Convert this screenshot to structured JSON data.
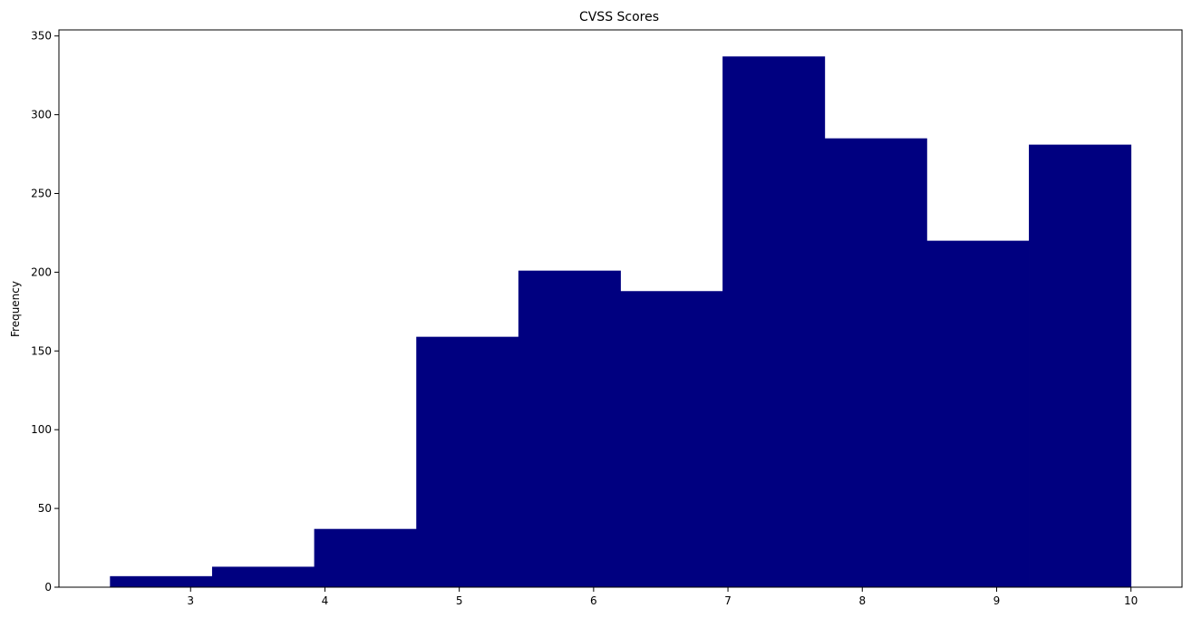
{
  "chart_data": {
    "type": "bar",
    "subtype": "histogram",
    "title": "CVSS Scores",
    "xlabel": "",
    "ylabel": "Frequency",
    "bins": [
      {
        "start": 2.4,
        "end": 3.16,
        "count": 7
      },
      {
        "start": 3.16,
        "end": 3.92,
        "count": 13
      },
      {
        "start": 3.92,
        "end": 4.68,
        "count": 37
      },
      {
        "start": 4.68,
        "end": 5.44,
        "count": 159
      },
      {
        "start": 5.44,
        "end": 6.2,
        "count": 201
      },
      {
        "start": 6.2,
        "end": 6.96,
        "count": 188
      },
      {
        "start": 6.96,
        "end": 7.72,
        "count": 337
      },
      {
        "start": 7.72,
        "end": 8.48,
        "count": 285
      },
      {
        "start": 8.48,
        "end": 9.24,
        "count": 220
      },
      {
        "start": 9.24,
        "end": 10.0,
        "count": 281
      }
    ],
    "xlim": [
      2.02,
      10.38
    ],
    "ylim": [
      0,
      353.85
    ],
    "xticks": [
      3,
      4,
      5,
      6,
      7,
      8,
      9,
      10
    ],
    "yticks": [
      0,
      50,
      100,
      150,
      200,
      250,
      300,
      350
    ],
    "bar_color": "#000080",
    "grid": false,
    "legend": "none"
  }
}
